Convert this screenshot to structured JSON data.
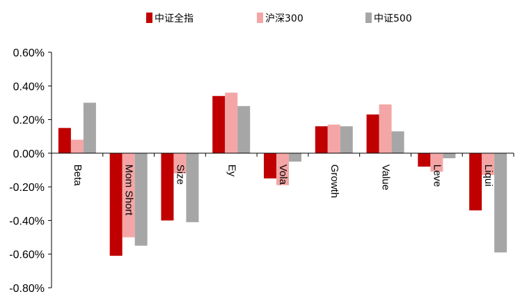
{
  "chart_data": {
    "type": "bar",
    "categories": [
      "Beta",
      "Mom Short",
      "Size",
      "Ey",
      "Vola",
      "Growth",
      "Value",
      "Leve",
      "Liqui"
    ],
    "series": [
      {
        "name": "中证全指",
        "color": "#c00000",
        "values": [
          0.15,
          -0.61,
          -0.4,
          0.34,
          -0.15,
          0.16,
          0.23,
          -0.08,
          -0.34
        ]
      },
      {
        "name": "沪深300",
        "color": "#f4a6a6",
        "values": [
          0.08,
          -0.5,
          -0.12,
          0.36,
          -0.19,
          0.17,
          0.29,
          -0.11,
          -0.13
        ]
      },
      {
        "name": "中证500",
        "color": "#a6a6a6",
        "values": [
          0.3,
          -0.55,
          -0.41,
          0.28,
          -0.05,
          0.16,
          0.13,
          -0.03,
          -0.59
        ]
      }
    ],
    "yticks": [
      "0.60%",
      "0.40%",
      "0.20%",
      "0.00%",
      "-0.20%",
      "-0.40%",
      "-0.60%",
      "-0.80%"
    ],
    "ylim": [
      -0.8,
      0.6
    ],
    "yunit": "%",
    "grid": false,
    "legend_position": "top"
  }
}
